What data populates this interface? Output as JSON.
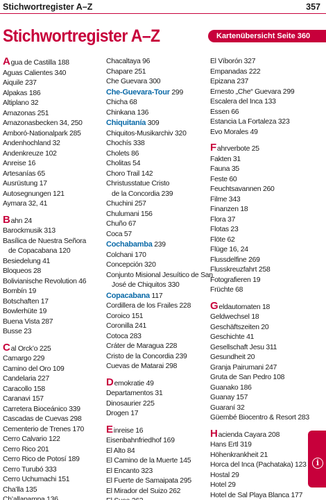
{
  "header": {
    "title": "Stichwortregister A–Z",
    "page": "357"
  },
  "main_title": "Stichwortregister A–Z",
  "map_link": "Kartenübersicht Seite 360",
  "columns": [
    {
      "entries": [
        {
          "letter": "A",
          "text": "gua de Castilla 188"
        },
        {
          "text": "Aguas Calientes 340"
        },
        {
          "text": "Aiquile 237"
        },
        {
          "text": "Alpakas 186"
        },
        {
          "text": "Altiplano 32"
        },
        {
          "text": "Amazonas 251"
        },
        {
          "text": "Amazonasbecken 34, 250"
        },
        {
          "text": "Amboró-Nationalpark 285"
        },
        {
          "text": "Andenhochland 32"
        },
        {
          "text": "Andenkreuze 102"
        },
        {
          "text": "Anreise 16"
        },
        {
          "text": "Artesanías 65"
        },
        {
          "text": "Ausrüstung 17"
        },
        {
          "text": "Autosegnungen 121"
        },
        {
          "text": "Aymara 32, 41"
        },
        {
          "gap": true
        },
        {
          "letter": "B",
          "text": "ahn 24"
        },
        {
          "text": "Barockmusik 313"
        },
        {
          "text": "Basílica de Nuestra Señora"
        },
        {
          "text": "de Copacabana 120",
          "indent": true
        },
        {
          "text": "Besiedelung 41"
        },
        {
          "text": "Bloqueos 28"
        },
        {
          "text": "Bolivianische Revolution 46"
        },
        {
          "text": "Bombín 19"
        },
        {
          "text": "Botschaften 17"
        },
        {
          "text": "Bowlerhüte 19"
        },
        {
          "text": "Buena Vista 287"
        },
        {
          "text": "Busse 23"
        },
        {
          "gap": true
        },
        {
          "letter": "C",
          "text": "al Orck’o 225"
        },
        {
          "text": "Camargo 229"
        },
        {
          "text": "Camino del Oro 109"
        },
        {
          "text": "Candelaria 227"
        },
        {
          "text": "Caracollo 158"
        },
        {
          "text": "Caranavi 157"
        },
        {
          "text": "Carretera Bioceánico 339"
        },
        {
          "text": "Cascadas de Cuevas 298"
        },
        {
          "text": "Cementerio  de Trenes 170"
        },
        {
          "text": "Cerro Calvario 122"
        },
        {
          "text": "Cerro Rico 201"
        },
        {
          "text": "Cerro Rico de Potosí 189"
        },
        {
          "text": "Cerro Turubó 333"
        },
        {
          "text": "Cerro Uchumachi 151"
        },
        {
          "text": "Cha’lla 135"
        },
        {
          "text": "Ch’allapampa 136"
        }
      ]
    },
    {
      "entries": [
        {
          "text": "Chacaltaya 96"
        },
        {
          "text": "Chapare 251"
        },
        {
          "text": "Che Guevara 300"
        },
        {
          "text": "Che-Guevara-Tour",
          "hl": true,
          "tail": " 299"
        },
        {
          "text": "Chicha 68"
        },
        {
          "text": "Chinkana 136"
        },
        {
          "text": "Chiquitanía",
          "hl": true,
          "tail": " 309"
        },
        {
          "text": "Chiquitos-Musikarchiv 320"
        },
        {
          "text": "Chochís 338"
        },
        {
          "text": "Cholets 86"
        },
        {
          "text": "Cholitas 54"
        },
        {
          "text": "Choro Trail 142"
        },
        {
          "text": "Christusstatue Cristo"
        },
        {
          "text": "de la Concordia 239",
          "indent": true
        },
        {
          "text": "Chuchini 257"
        },
        {
          "text": "Chulumani 156"
        },
        {
          "text": "Chuño 67"
        },
        {
          "text": "Coca 57"
        },
        {
          "text": "Cochabamba",
          "hl": true,
          "tail": " 239"
        },
        {
          "text": "Colchani 170"
        },
        {
          "text": "Concepción 320"
        },
        {
          "text": "Conjunto Misional Jesuítico de San"
        },
        {
          "text": "José de Chiquitos 330",
          "indent": true
        },
        {
          "text": "Copacabana",
          "hl": true,
          "tail": " 117"
        },
        {
          "text": "Cordillera de los Frailes 228"
        },
        {
          "text": "Coroico 151"
        },
        {
          "text": "Coronilla 241"
        },
        {
          "text": "Cotoca 283"
        },
        {
          "text": "Cráter de Maragua 228"
        },
        {
          "text": "Cristo de la Concordia 239"
        },
        {
          "text": "Cuevas de Matarai 298"
        },
        {
          "gap": true
        },
        {
          "letter": "D",
          "text": "emokratie 49"
        },
        {
          "text": "Departamentos 31"
        },
        {
          "text": "Dinosaurier 225"
        },
        {
          "text": "Drogen 17"
        },
        {
          "gap": true
        },
        {
          "letter": "E",
          "text": "inreise 16"
        },
        {
          "text": "Eisenbahnfriedhof 169"
        },
        {
          "text": "El Alto 84"
        },
        {
          "text": "El Camino de la Muerte 145"
        },
        {
          "text": "El Encanto 323"
        },
        {
          "text": "El Fuerte de Samaipata 295"
        },
        {
          "text": "El Mirador del Suizo 262"
        },
        {
          "text": "El Suse 262"
        }
      ]
    },
    {
      "entries": [
        {
          "text": "El Víborón 327"
        },
        {
          "text": "Empanadas 222"
        },
        {
          "text": "Epizana 237"
        },
        {
          "text": "Ernesto „Che“ Guevara 299"
        },
        {
          "text": "Escalera del Inca 133"
        },
        {
          "text": "Essen 66"
        },
        {
          "text": "Estancia La Fortaleza 323"
        },
        {
          "text": "Evo Morales 49"
        },
        {
          "gap": true
        },
        {
          "letter": "F",
          "text": "ahrverbote 25"
        },
        {
          "text": "Fakten 31"
        },
        {
          "text": "Fauna 35"
        },
        {
          "text": "Feste 60"
        },
        {
          "text": "Feuchtsavannen 260"
        },
        {
          "text": "Filme 343"
        },
        {
          "text": "Finanzen 18"
        },
        {
          "text": "Flora 37"
        },
        {
          "text": "Flotas 23"
        },
        {
          "text": "Flöte 62"
        },
        {
          "text": "Flüge 16, 24"
        },
        {
          "text": "Flussdelfine 269"
        },
        {
          "text": "Flusskreuzfahrt 258"
        },
        {
          "text": "Fotografieren 19"
        },
        {
          "text": "Früchte 68"
        },
        {
          "gap": true
        },
        {
          "letter": "G",
          "text": "eldautomaten 18"
        },
        {
          "text": "Geldwechsel 18"
        },
        {
          "text": "Geschäftszeiten 20"
        },
        {
          "text": "Geschichte 41"
        },
        {
          "text": "Gesellschaft Jesu 311"
        },
        {
          "text": "Gesundheit 20"
        },
        {
          "text": "Granja Pairumani 247"
        },
        {
          "text": "Gruta de San Pedro 108"
        },
        {
          "text": "Guanako 186"
        },
        {
          "text": "Guanay 157"
        },
        {
          "text": "Guaraní 32"
        },
        {
          "text": "Güembé Biocentro & Resort 283"
        },
        {
          "gap": true
        },
        {
          "letter": "H",
          "text": "acienda Cayara 208"
        },
        {
          "text": "Hans Ertl 319"
        },
        {
          "text": "Höhenkrankheit 21"
        },
        {
          "text": "Horca del Inca (Pachataka) 123"
        },
        {
          "text": "Hostal 29"
        },
        {
          "text": "Hotel 29"
        },
        {
          "text": "Hotel de Sal Playa Blanca 177"
        }
      ]
    }
  ],
  "info_icon": "info-icon",
  "colors": {
    "accent": "#c7003b",
    "highlight": "#0a6aa8",
    "text": "#1a1a1a"
  }
}
